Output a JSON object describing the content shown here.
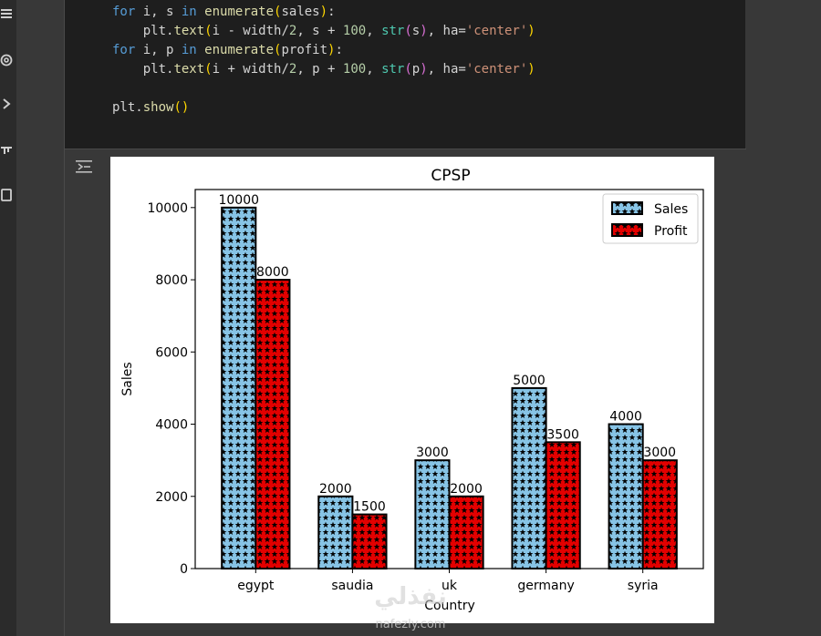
{
  "sidebar": {
    "icons": [
      "menu-icon",
      "at-sign-icon",
      "chevron-right-icon",
      "code-icon",
      "terminal-icon"
    ]
  },
  "code": {
    "lines": [
      "    for i, s in enumerate(sales):",
      "        plt.text(i - width/2, s + 100, str(s), ha='center')",
      "    for i, p in enumerate(profit):",
      "        plt.text(i + width/2, p + 100, str(p), ha='center')",
      "",
      "    plt.show()"
    ]
  },
  "watermark": {
    "arabic": "نفذلي",
    "latin": "nafezly.com"
  },
  "colors": {
    "sales": "#87c4e6",
    "profit": "#e30000",
    "edge": "#000000"
  },
  "chart_data": {
    "type": "bar",
    "title": "CPSP",
    "xlabel": "Country",
    "ylabel": "Sales",
    "categories": [
      "egypt",
      "saudia",
      "uk",
      "germany",
      "syria"
    ],
    "series": [
      {
        "name": "Sales",
        "values": [
          10000,
          2000,
          3000,
          5000,
          4000
        ],
        "hatch": "stars"
      },
      {
        "name": "Profit",
        "values": [
          8000,
          1500,
          2000,
          3500,
          3000
        ],
        "hatch": "stars"
      }
    ],
    "data_labels": [
      [
        "10000",
        "2000",
        "3000",
        "5000",
        "4000"
      ],
      [
        "8000",
        "1500",
        "2000",
        "3500",
        "3000"
      ]
    ],
    "yticks": [
      "0",
      "2000",
      "4000",
      "6000",
      "8000",
      "10000"
    ],
    "ytick_values": [
      0,
      2000,
      4000,
      6000,
      8000,
      10000
    ],
    "ylim": [
      0,
      10500
    ],
    "grid": false,
    "legend_position": "top-right"
  }
}
